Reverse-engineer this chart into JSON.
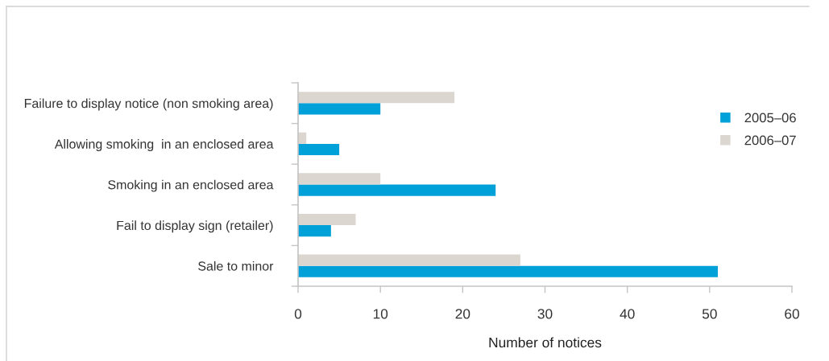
{
  "chart_data": {
    "type": "bar",
    "orientation": "horizontal",
    "categories": [
      "Failure to display notice (non smoking area)",
      "Allowing smoking  in an enclosed area",
      "Smoking in an enclosed area",
      "Fail to display sign (retailer)",
      "Sale to minor"
    ],
    "series": [
      {
        "name": "2005–06",
        "color": "#00a0d8",
        "values": [
          10,
          5,
          24,
          4,
          51
        ]
      },
      {
        "name": "2006–07",
        "color": "#dbd6d0",
        "values": [
          19,
          1,
          10,
          7,
          27
        ]
      }
    ],
    "xlabel": "Number of notices",
    "xlim": [
      0,
      60
    ],
    "xticks": [
      0,
      10,
      20,
      30,
      40,
      50,
      60
    ],
    "legend": "top right",
    "grid": false
  }
}
